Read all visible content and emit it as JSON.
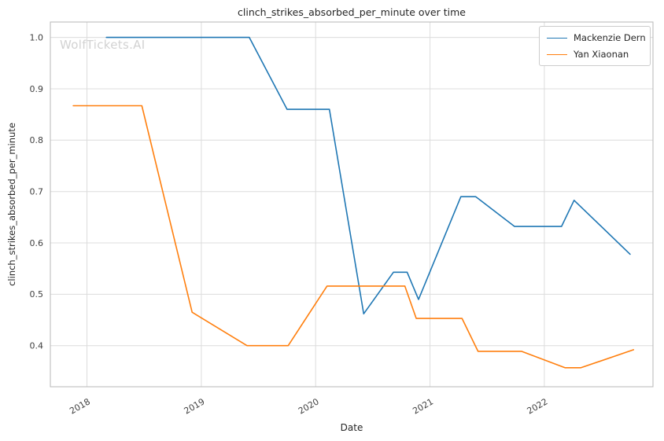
{
  "chart": {
    "title": "clinch_strikes_absorbed_per_minute over time",
    "watermark": "WolfTickets.AI",
    "xlabel": "Date",
    "ylabel": "clinch_strikes_absorbed_per_minute"
  },
  "chart_data": {
    "type": "line",
    "title": "clinch_strikes_absorbed_per_minute over time",
    "xlabel": "Date",
    "ylabel": "clinch_strikes_absorbed_per_minute",
    "grid": true,
    "legend_position": "upper right",
    "x_ticks": [
      2018,
      2019,
      2020,
      2021,
      2022
    ],
    "y_ticks": [
      0.4,
      0.5,
      0.6,
      0.7,
      0.8,
      0.9,
      1.0
    ],
    "xlim": [
      2017.68,
      2022.95
    ],
    "ylim": [
      0.32,
      1.03
    ],
    "series": [
      {
        "name": "Mackenzie Dern",
        "color": "#1f77b4",
        "points": [
          [
            2018.17,
            1.0
          ],
          [
            2019.42,
            1.0
          ],
          [
            2019.75,
            0.86
          ],
          [
            2020.12,
            0.86
          ],
          [
            2020.42,
            0.462
          ],
          [
            2020.68,
            0.543
          ],
          [
            2020.8,
            0.543
          ],
          [
            2020.9,
            0.49
          ],
          [
            2021.27,
            0.69
          ],
          [
            2021.4,
            0.69
          ],
          [
            2021.74,
            0.632
          ],
          [
            2022.15,
            0.632
          ],
          [
            2022.26,
            0.683
          ],
          [
            2022.75,
            0.578
          ]
        ]
      },
      {
        "name": "Yan Xiaonan",
        "color": "#ff7f0e",
        "points": [
          [
            2017.88,
            0.867
          ],
          [
            2018.48,
            0.867
          ],
          [
            2018.92,
            0.465
          ],
          [
            2019.4,
            0.4
          ],
          [
            2019.76,
            0.4
          ],
          [
            2020.1,
            0.516
          ],
          [
            2020.78,
            0.516
          ],
          [
            2020.88,
            0.453
          ],
          [
            2021.28,
            0.453
          ],
          [
            2021.42,
            0.389
          ],
          [
            2021.8,
            0.389
          ],
          [
            2022.18,
            0.357
          ],
          [
            2022.32,
            0.357
          ],
          [
            2022.78,
            0.392
          ]
        ]
      }
    ]
  }
}
